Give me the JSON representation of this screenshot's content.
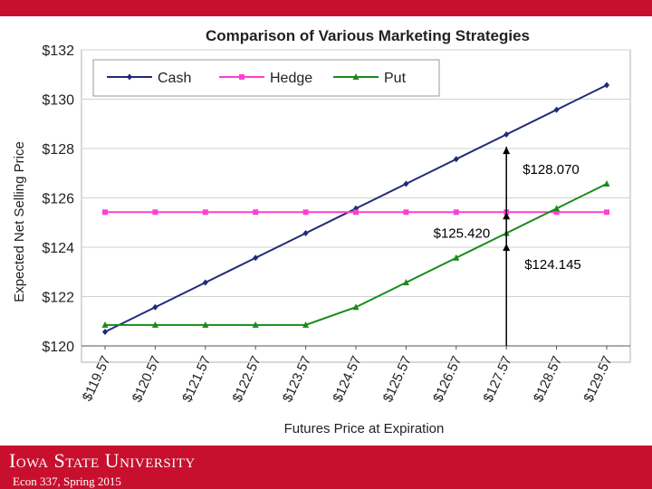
{
  "footer": {
    "university": "Iowa State University",
    "course": "Econ 337, Spring 2015"
  },
  "chart_data": {
    "type": "line",
    "title": "Comparison of Various Marketing Strategies",
    "xlabel": "Futures Price at Expiration",
    "ylabel": "Expected Net Selling Price",
    "categories": [
      "$119.57",
      "$120.57",
      "$121.57",
      "$122.57",
      "$123.57",
      "$124.57",
      "$125.57",
      "$126.57",
      "$127.57",
      "$128.57",
      "$129.57"
    ],
    "x": [
      119.57,
      120.57,
      121.57,
      122.57,
      123.57,
      124.57,
      125.57,
      126.57,
      127.57,
      128.57,
      129.57
    ],
    "y_ticks": [
      "$120",
      "$122",
      "$124",
      "$126",
      "$128",
      "$130",
      "$132"
    ],
    "ylim": [
      120,
      132
    ],
    "grid": "horizontal",
    "legend_position": "top-left",
    "series": [
      {
        "name": "Cash",
        "color": "#1f2a7a",
        "marker": "diamond",
        "values": [
          120.57,
          121.57,
          122.57,
          123.57,
          124.57,
          125.57,
          126.57,
          127.57,
          128.57,
          129.57,
          130.57
        ]
      },
      {
        "name": "Hedge",
        "color": "#ff3fd0",
        "marker": "square",
        "values": [
          125.42,
          125.42,
          125.42,
          125.42,
          125.42,
          125.42,
          125.42,
          125.42,
          125.42,
          125.42,
          125.42
        ]
      },
      {
        "name": "Put",
        "color": "#1a8a1a",
        "marker": "triangle",
        "values": [
          120.85,
          120.85,
          120.85,
          120.85,
          120.85,
          121.57,
          122.57,
          123.57,
          124.57,
          125.57,
          126.57
        ]
      }
    ],
    "annotations": [
      {
        "text": "$128.070",
        "x": 127.57,
        "y": 128.07
      },
      {
        "text": "$125.420",
        "x": 127.57,
        "y": 125.42
      },
      {
        "text": "$124.145",
        "x": 127.57,
        "y": 124.145
      }
    ]
  }
}
